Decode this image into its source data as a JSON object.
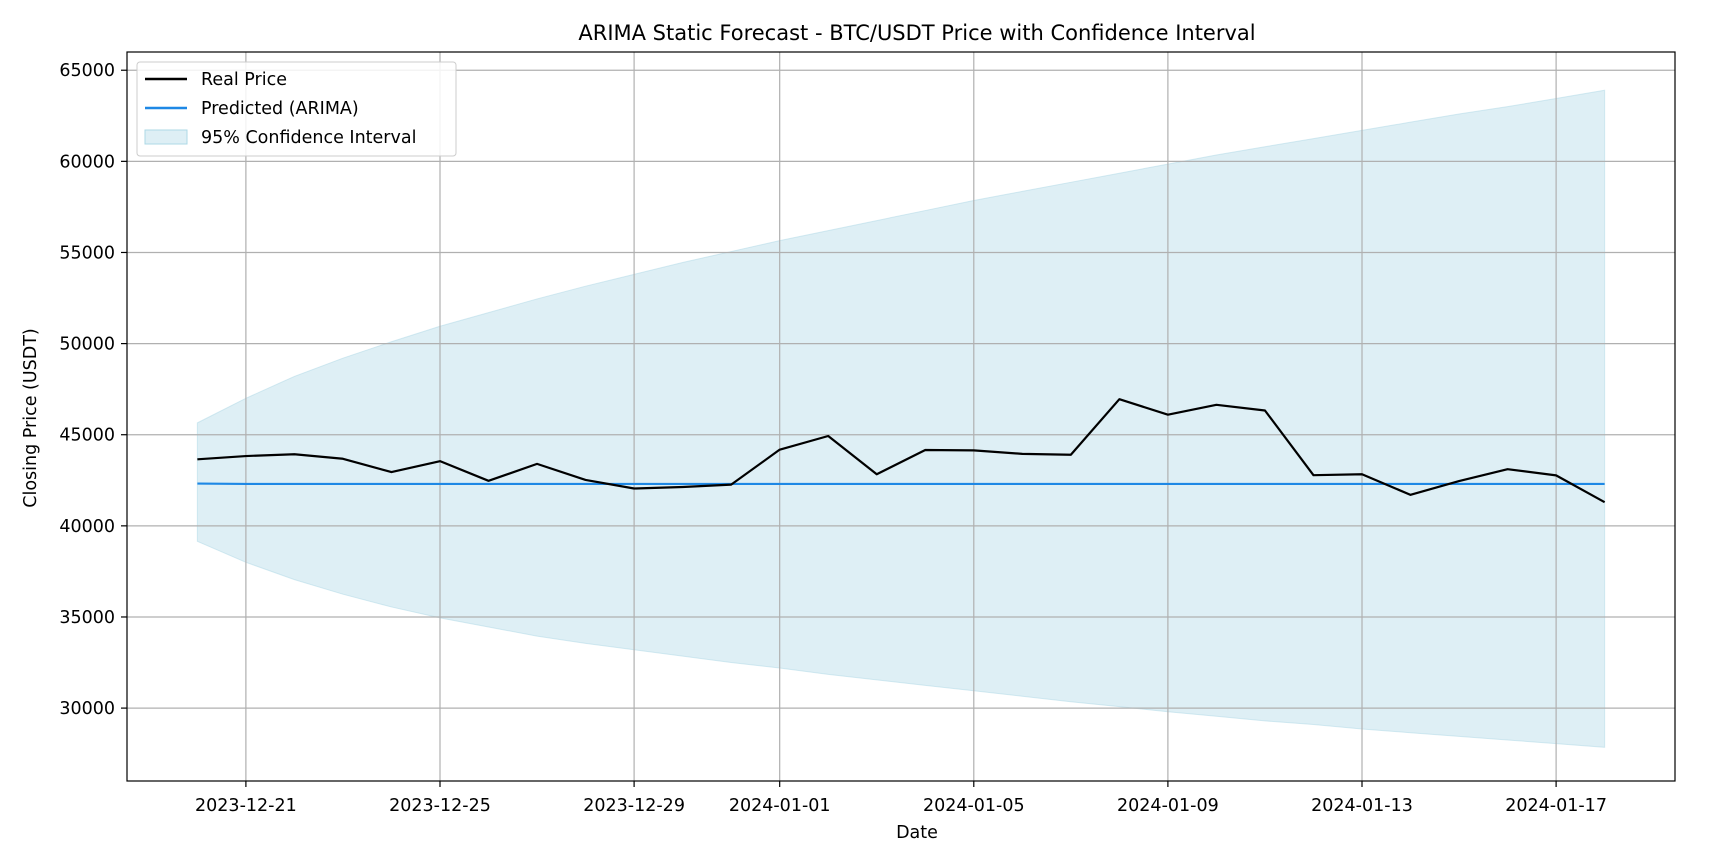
{
  "chart_data": {
    "type": "line",
    "title": "ARIMA Static Forecast - BTC/USDT Price with Confidence Interval",
    "xlabel": "Date",
    "ylabel": "Closing Price (USDT)",
    "x": [
      "2023-12-20",
      "2023-12-21",
      "2023-12-22",
      "2023-12-23",
      "2023-12-24",
      "2023-12-25",
      "2023-12-26",
      "2023-12-27",
      "2023-12-28",
      "2023-12-29",
      "2023-12-30",
      "2023-12-31",
      "2024-01-01",
      "2024-01-02",
      "2024-01-03",
      "2024-01-04",
      "2024-01-05",
      "2024-01-06",
      "2024-01-07",
      "2024-01-08",
      "2024-01-09",
      "2024-01-10",
      "2024-01-11",
      "2024-01-12",
      "2024-01-13",
      "2024-01-14",
      "2024-01-15",
      "2024-01-16",
      "2024-01-17",
      "2024-01-18"
    ],
    "x_ticks": [
      "2023-12-21",
      "2023-12-25",
      "2023-12-29",
      "2024-01-01",
      "2024-01-05",
      "2024-01-09",
      "2024-01-13",
      "2024-01-17"
    ],
    "ylim": [
      26000,
      66000
    ],
    "y_ticks": [
      30000,
      35000,
      40000,
      45000,
      50000,
      55000,
      60000,
      65000
    ],
    "grid": true,
    "legend_position": "top-left",
    "series": [
      {
        "name": "Real Price",
        "color": "#000000",
        "values": [
          43650,
          43830,
          43930,
          43680,
          42950,
          43550,
          42470,
          43400,
          42520,
          42050,
          42130,
          42260,
          44180,
          44930,
          42830,
          44160,
          44140,
          43950,
          43900,
          46950,
          46100,
          46640,
          46330,
          42780,
          42830,
          41700,
          42460,
          43110,
          42770,
          41300
        ]
      },
      {
        "name": "Predicted (ARIMA)",
        "color": "#1e88e5",
        "values": [
          42320,
          42300,
          42300,
          42300,
          42300,
          42300,
          42300,
          42300,
          42300,
          42300,
          42300,
          42300,
          42300,
          42300,
          42300,
          42300,
          42300,
          42300,
          42300,
          42300,
          42300,
          42300,
          42300,
          42300,
          42300,
          42300,
          42300,
          42300,
          42300,
          42300
        ]
      },
      {
        "name": "95% Confidence Interval",
        "color": "#add8e6",
        "type": "band",
        "lower": [
          39150,
          38000,
          37050,
          36250,
          35550,
          34950,
          34450,
          33950,
          33550,
          33200,
          32850,
          32500,
          32200,
          31850,
          31550,
          31250,
          30950,
          30650,
          30350,
          30080,
          29800,
          29550,
          29300,
          29100,
          28850,
          28650,
          28450,
          28250,
          28050,
          27850
        ],
        "upper": [
          45650,
          47000,
          48200,
          49200,
          50100,
          50950,
          51700,
          52450,
          53150,
          53800,
          54450,
          55050,
          55650,
          56200,
          56750,
          57300,
          57850,
          58350,
          58850,
          59350,
          59850,
          60350,
          60800,
          61250,
          61700,
          62150,
          62600,
          63000,
          63450,
          63900
        ]
      }
    ]
  }
}
